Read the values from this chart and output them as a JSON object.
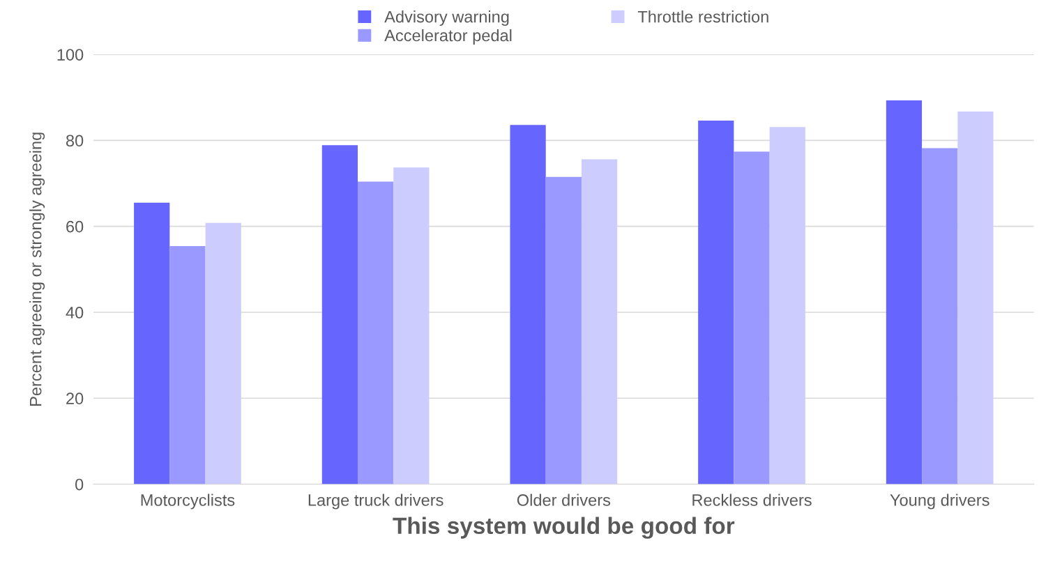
{
  "chart_data": {
    "type": "bar",
    "xlabel": "This system would be good for",
    "ylabel": "Percent agreeing or strongly agreeing",
    "categories": [
      "Motorcyclists",
      "Large truck drivers",
      "Older drivers",
      "Reckless drivers",
      "Young drivers"
    ],
    "series": [
      {
        "name": "Advisory warning",
        "color": "#6666ff",
        "values": [
          65.5,
          78.9,
          83.6,
          84.6,
          89.3
        ]
      },
      {
        "name": "Accelerator pedal",
        "color": "#9999ff",
        "values": [
          55.4,
          70.4,
          71.5,
          77.4,
          78.2
        ]
      },
      {
        "name": "Throttle restriction",
        "color": "#ccccff",
        "values": [
          60.8,
          73.7,
          75.6,
          83.1,
          86.7
        ]
      }
    ],
    "ylim": [
      0,
      100
    ],
    "yticks": [
      0,
      20,
      40,
      60,
      80,
      100
    ],
    "grid": "y",
    "legend": "top"
  }
}
